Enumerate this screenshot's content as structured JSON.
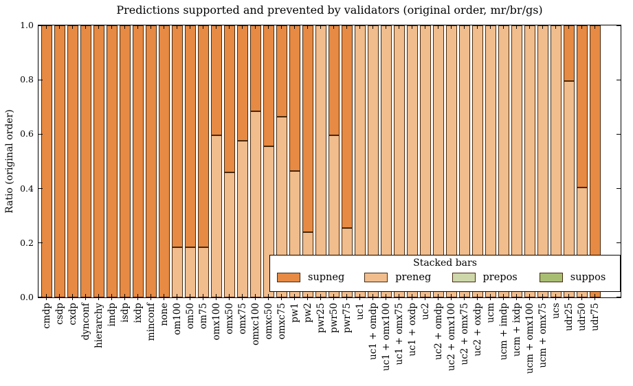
{
  "title": "Predictions supported and prevented by validators (original order, mr/br/gs)",
  "ylabel": "Ratio (original order)",
  "colors": {
    "background": "#FFFFFF",
    "axis": "#000000",
    "edge": "#46290E",
    "supneg": "#E78A43",
    "preneg": "#F1BD8D",
    "prepos": "#CED7A9",
    "suppos": "#A9BD72"
  },
  "axes": {
    "ytick_labels": [
      "0.0",
      "0.2",
      "0.4",
      "0.6",
      "0.8",
      "1.0"
    ]
  },
  "legend": {
    "title": "Stacked bars",
    "entries": [
      {
        "label": "supneg",
        "color": "#E78A43"
      },
      {
        "label": "preneg",
        "color": "#F1BD8D"
      },
      {
        "label": "prepos",
        "color": "#CED7A9"
      },
      {
        "label": "suppos",
        "color": "#A9BD72"
      }
    ]
  },
  "chart_data": {
    "type": "bar",
    "stacked": true,
    "title": "Predictions supported and prevented by validators (original order, mr/br/gs)",
    "ylabel": "Ratio (original order)",
    "ylim": [
      0.0,
      1.0
    ],
    "yticks": [
      0.0,
      0.2,
      0.4,
      0.6,
      0.8,
      1.0
    ],
    "grid": false,
    "legend_position": "lower right inside",
    "stack_order_bottom_to_top": [
      "preneg",
      "supneg",
      "prepos",
      "suppos"
    ],
    "categories": [
      "cmdp",
      "csdp",
      "cxdp",
      "dynconf",
      "hierarchy",
      "imdp",
      "isdp",
      "ixdp",
      "minconf",
      "none",
      "om100",
      "om50",
      "om75",
      "omx100",
      "omx50",
      "omx75",
      "omxc100",
      "omxc50",
      "omxc75",
      "pw1",
      "pw2",
      "pwr25",
      "pwr50",
      "pwr75",
      "uc1",
      "uc1 + omdp",
      "uc1 + omx100",
      "uc1 + omx75",
      "uc1 + oxdp",
      "uc2",
      "uc2 + omdp",
      "uc2 + omx100",
      "uc2 + omx75",
      "uc2 + oxdp",
      "ucm",
      "ucm + imdp",
      "ucm + ixdp",
      "ucm + omx100",
      "ucm + omx75",
      "ucs",
      "udr25",
      "udr50",
      "udr75"
    ],
    "series": [
      {
        "name": "preneg",
        "color": "#F1BD8D",
        "values": [
          0,
          0,
          0,
          0,
          0,
          0,
          0,
          0,
          0,
          0,
          0.185,
          0.185,
          0.185,
          0.595,
          0.46,
          0.575,
          0.685,
          0.555,
          0.665,
          0.465,
          0.24,
          1.0,
          0.595,
          0.255,
          1.0,
          1.0,
          1.0,
          1.0,
          1.0,
          1.0,
          1.0,
          1.0,
          1.0,
          1.0,
          1.0,
          1.0,
          1.0,
          1.0,
          1.0,
          1.0,
          0.795,
          0.405,
          0
        ]
      },
      {
        "name": "supneg",
        "color": "#E78A43",
        "values": [
          1,
          1,
          1,
          1,
          1,
          1,
          1,
          1,
          1,
          1,
          0.815,
          0.815,
          0.815,
          0.405,
          0.54,
          0.425,
          0.315,
          0.445,
          0.335,
          0.535,
          0.76,
          0,
          0.405,
          0.745,
          0,
          0,
          0,
          0,
          0,
          0,
          0,
          0,
          0,
          0,
          0,
          0,
          0,
          0,
          0,
          0,
          0.205,
          0.595,
          1
        ]
      },
      {
        "name": "prepos",
        "color": "#CED7A9",
        "values": [
          0,
          0,
          0,
          0,
          0,
          0,
          0,
          0,
          0,
          0,
          0,
          0,
          0,
          0,
          0,
          0,
          0,
          0,
          0,
          0,
          0,
          0,
          0,
          0,
          0,
          0,
          0,
          0,
          0,
          0,
          0,
          0,
          0,
          0,
          0,
          0,
          0,
          0,
          0,
          0,
          0,
          0,
          0
        ]
      },
      {
        "name": "suppos",
        "color": "#A9BD72",
        "values": [
          0,
          0,
          0,
          0,
          0,
          0,
          0,
          0,
          0,
          0,
          0,
          0,
          0,
          0,
          0,
          0,
          0,
          0,
          0,
          0,
          0,
          0,
          0,
          0,
          0,
          0,
          0,
          0,
          0,
          0,
          0,
          0,
          0,
          0,
          0,
          0,
          0,
          0,
          0,
          0,
          0,
          0,
          0
        ]
      }
    ]
  }
}
